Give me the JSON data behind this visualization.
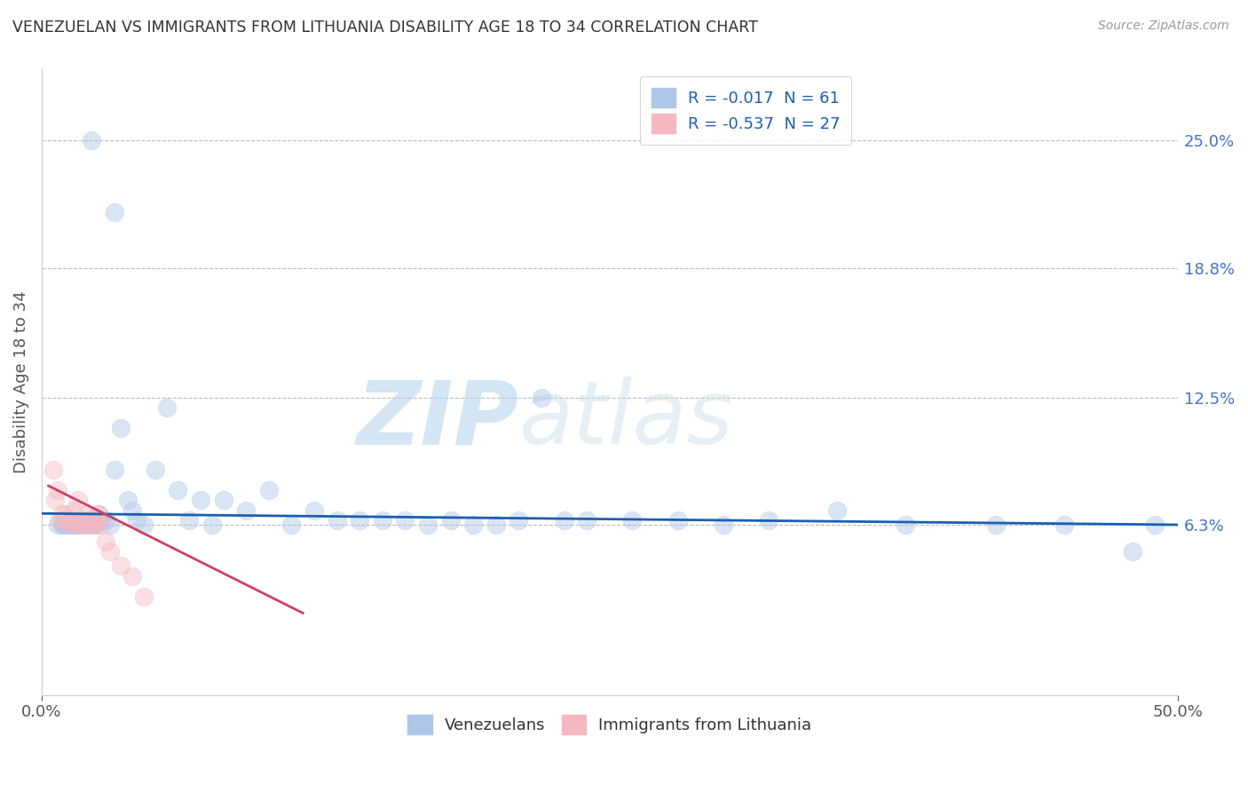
{
  "title": "VENEZUELAN VS IMMIGRANTS FROM LITHUANIA DISABILITY AGE 18 TO 34 CORRELATION CHART",
  "source": "Source: ZipAtlas.com",
  "ylabel": "Disability Age 18 to 34",
  "right_ytick_labels": [
    "6.3%",
    "12.5%",
    "18.8%",
    "25.0%"
  ],
  "right_ytick_values": [
    0.063,
    0.125,
    0.188,
    0.25
  ],
  "xlim": [
    0.0,
    0.5
  ],
  "ylim": [
    -0.02,
    0.285
  ],
  "legend_entries": [
    {
      "label": "R = -0.017  N = 61",
      "color": "#aec6e8"
    },
    {
      "label": "R = -0.537  N = 27",
      "color": "#f4b8c1"
    }
  ],
  "blue_scatter_x": [
    0.022,
    0.032,
    0.007,
    0.009,
    0.01,
    0.011,
    0.012,
    0.013,
    0.014,
    0.015,
    0.016,
    0.017,
    0.018,
    0.019,
    0.02,
    0.021,
    0.023,
    0.024,
    0.025,
    0.026,
    0.028,
    0.03,
    0.032,
    0.035,
    0.038,
    0.04,
    0.042,
    0.045,
    0.05,
    0.055,
    0.06,
    0.065,
    0.07,
    0.075,
    0.08,
    0.09,
    0.1,
    0.11,
    0.12,
    0.13,
    0.14,
    0.15,
    0.16,
    0.17,
    0.18,
    0.19,
    0.2,
    0.21,
    0.22,
    0.23,
    0.24,
    0.26,
    0.28,
    0.3,
    0.32,
    0.35,
    0.38,
    0.42,
    0.45,
    0.48,
    0.49
  ],
  "blue_scatter_y": [
    0.25,
    0.215,
    0.063,
    0.063,
    0.063,
    0.063,
    0.065,
    0.063,
    0.063,
    0.063,
    0.063,
    0.065,
    0.063,
    0.065,
    0.063,
    0.065,
    0.063,
    0.063,
    0.068,
    0.065,
    0.065,
    0.063,
    0.09,
    0.11,
    0.075,
    0.07,
    0.065,
    0.063,
    0.09,
    0.12,
    0.08,
    0.065,
    0.075,
    0.063,
    0.075,
    0.07,
    0.08,
    0.063,
    0.07,
    0.065,
    0.065,
    0.065,
    0.065,
    0.063,
    0.065,
    0.063,
    0.063,
    0.065,
    0.125,
    0.065,
    0.065,
    0.065,
    0.065,
    0.063,
    0.065,
    0.07,
    0.063,
    0.063,
    0.063,
    0.05,
    0.063
  ],
  "pink_scatter_x": [
    0.005,
    0.006,
    0.007,
    0.008,
    0.009,
    0.01,
    0.011,
    0.012,
    0.013,
    0.014,
    0.015,
    0.016,
    0.017,
    0.018,
    0.019,
    0.02,
    0.021,
    0.022,
    0.023,
    0.024,
    0.025,
    0.026,
    0.028,
    0.03,
    0.035,
    0.04,
    0.045
  ],
  "pink_scatter_y": [
    0.09,
    0.075,
    0.08,
    0.065,
    0.068,
    0.065,
    0.068,
    0.065,
    0.063,
    0.07,
    0.065,
    0.075,
    0.063,
    0.063,
    0.065,
    0.068,
    0.063,
    0.065,
    0.063,
    0.065,
    0.068,
    0.063,
    0.055,
    0.05,
    0.043,
    0.038,
    0.028
  ],
  "blue_line_x": [
    0.0,
    0.5
  ],
  "blue_line_y": [
    0.0685,
    0.063
  ],
  "pink_line_x": [
    0.003,
    0.115
  ],
  "pink_line_y": [
    0.082,
    0.02
  ],
  "watermark_zip": "ZIP",
  "watermark_atlas": "atlas",
  "scatter_size": 220,
  "scatter_alpha": 0.45,
  "blue_color": "#aec6e8",
  "pink_color": "#f4b8c1",
  "blue_line_color": "#1a5fb0",
  "pink_line_color": "#d04060",
  "title_color": "#333333",
  "axis_label_color": "#555555",
  "right_label_color": "#4472c4",
  "background_color": "#ffffff",
  "grid_color": "#bbbbbb"
}
